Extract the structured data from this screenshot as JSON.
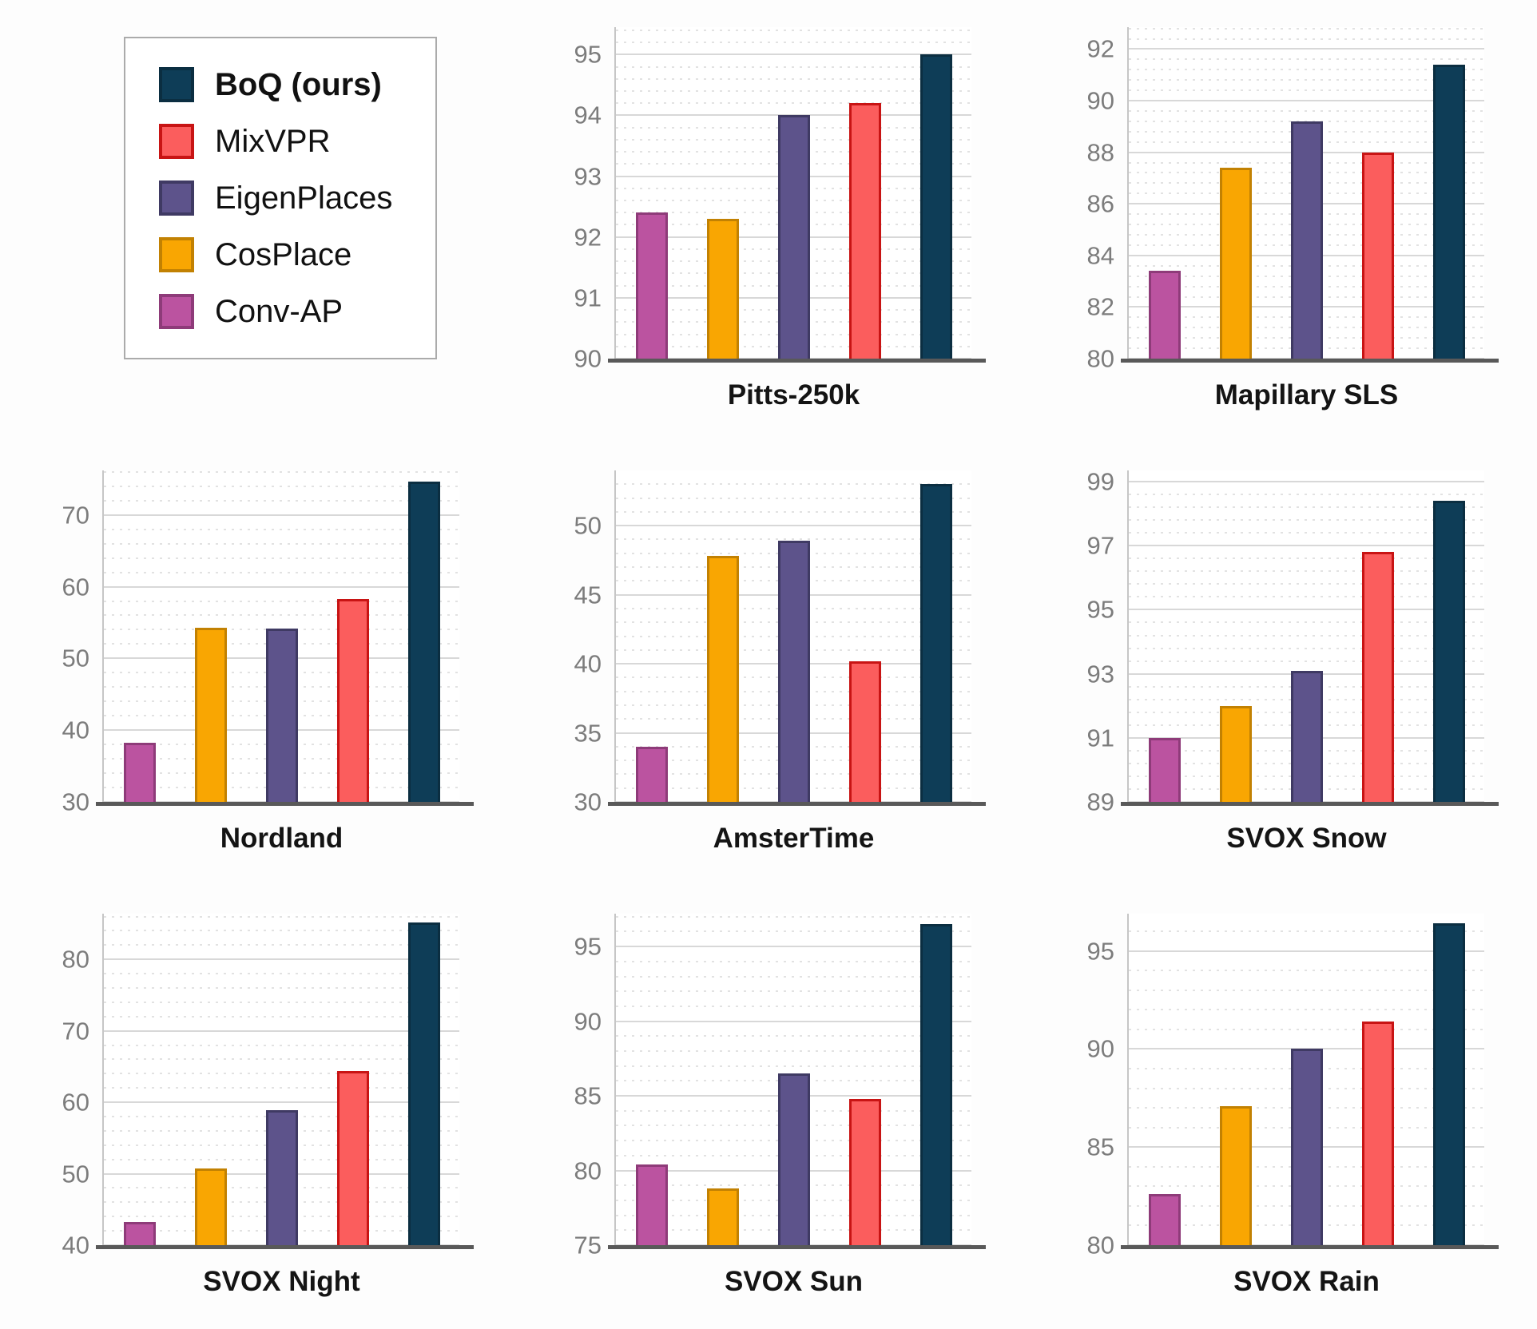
{
  "figure": {
    "description": "Grid of eight bar charts comparing place-recognition methods across benchmarks",
    "background": "#fdfdfd"
  },
  "legend": {
    "items": [
      {
        "label": "BoQ (ours)",
        "series": "BoQ (ours)",
        "bold": true
      },
      {
        "label": "MixVPR",
        "series": "MixVPR",
        "bold": false
      },
      {
        "label": "EigenPlaces",
        "series": "EigenPlaces",
        "bold": false
      },
      {
        "label": "CosPlace",
        "series": "CosPlace",
        "bold": false
      },
      {
        "label": "Conv-AP",
        "series": "Conv-AP",
        "bold": false
      }
    ]
  },
  "series_colors": {
    "Conv-AP": {
      "fill": "#bb53a0",
      "border": "#8e3b79"
    },
    "CosPlace": {
      "fill": "#f9a602",
      "border": "#c28102"
    },
    "EigenPlaces": {
      "fill": "#5d538b",
      "border": "#3f3a63"
    },
    "MixVPR": {
      "fill": "#fb5d5d",
      "border": "#c81414"
    },
    "BoQ (ours)": {
      "fill": "#0e3d57",
      "border": "#0b2e41"
    }
  },
  "bar_order": [
    "Conv-AP",
    "CosPlace",
    "EigenPlaces",
    "MixVPR",
    "BoQ (ours)"
  ],
  "chart_data": [
    {
      "type": "bar",
      "title": "Pitts-250k",
      "ylim": [
        90,
        95.45
      ],
      "yticks": [
        90,
        91,
        92,
        93,
        94,
        95
      ],
      "minor_step": 0.2,
      "grid": "major-solid minor-dotted",
      "legend_position": "separate-top-left",
      "categories": [
        "Conv-AP",
        "CosPlace",
        "EigenPlaces",
        "MixVPR",
        "BoQ (ours)"
      ],
      "values": [
        92.4,
        92.3,
        94.0,
        94.2,
        95.0
      ]
    },
    {
      "type": "bar",
      "title": "Mapillary SLS",
      "ylim": [
        80,
        92.85
      ],
      "yticks": [
        80,
        82,
        84,
        86,
        88,
        90,
        92
      ],
      "minor_step": 0.4,
      "grid": "major-solid minor-dotted",
      "legend_position": "separate-top-left",
      "categories": [
        "Conv-AP",
        "CosPlace",
        "EigenPlaces",
        "MixVPR",
        "BoQ (ours)"
      ],
      "values": [
        83.4,
        87.4,
        89.2,
        88.0,
        91.4
      ]
    },
    {
      "type": "bar",
      "title": "Nordland",
      "ylim": [
        30,
        76.2
      ],
      "yticks": [
        30,
        40,
        50,
        60,
        70
      ],
      "minor_step": 2,
      "grid": "major-solid minor-dotted",
      "legend_position": "separate-top-left",
      "categories": [
        "Conv-AP",
        "CosPlace",
        "EigenPlaces",
        "MixVPR",
        "BoQ (ours)"
      ],
      "values": [
        38.2,
        54.3,
        54.2,
        58.3,
        74.6
      ]
    },
    {
      "type": "bar",
      "title": "AmsterTime",
      "ylim": [
        30,
        54.0
      ],
      "yticks": [
        30,
        35,
        40,
        45,
        50
      ],
      "minor_step": 1,
      "grid": "major-solid minor-dotted",
      "legend_position": "separate-top-left",
      "categories": [
        "Conv-AP",
        "CosPlace",
        "EigenPlaces",
        "MixVPR",
        "BoQ (ours)"
      ],
      "values": [
        34.0,
        47.8,
        48.9,
        40.2,
        53.0
      ]
    },
    {
      "type": "bar",
      "title": "SVOX Snow",
      "ylim": [
        89,
        99.35
      ],
      "yticks": [
        89,
        91,
        93,
        95,
        97,
        99
      ],
      "minor_step": 0.4,
      "grid": "major-solid minor-dotted",
      "legend_position": "separate-top-left",
      "categories": [
        "Conv-AP",
        "CosPlace",
        "EigenPlaces",
        "MixVPR",
        "BoQ (ours)"
      ],
      "values": [
        91.0,
        92.0,
        93.1,
        96.8,
        98.4
      ]
    },
    {
      "type": "bar",
      "title": "SVOX Night",
      "ylim": [
        40,
        86.4
      ],
      "yticks": [
        40,
        50,
        60,
        70,
        80
      ],
      "minor_step": 2,
      "grid": "major-solid minor-dotted",
      "legend_position": "separate-top-left",
      "categories": [
        "Conv-AP",
        "CosPlace",
        "EigenPlaces",
        "MixVPR",
        "BoQ (ours)"
      ],
      "values": [
        43.3,
        50.7,
        58.9,
        64.4,
        85.2
      ]
    },
    {
      "type": "bar",
      "title": "SVOX Sun",
      "ylim": [
        75,
        97.2
      ],
      "yticks": [
        75,
        80,
        85,
        90,
        95
      ],
      "minor_step": 1,
      "grid": "major-solid minor-dotted",
      "legend_position": "separate-top-left",
      "categories": [
        "Conv-AP",
        "CosPlace",
        "EigenPlaces",
        "MixVPR",
        "BoQ (ours)"
      ],
      "values": [
        80.4,
        78.8,
        86.5,
        84.8,
        96.5
      ]
    },
    {
      "type": "bar",
      "title": "SVOX Rain",
      "ylim": [
        80,
        96.9
      ],
      "yticks": [
        80,
        85,
        90,
        95
      ],
      "minor_step": 1,
      "grid": "major-solid minor-dotted",
      "legend_position": "separate-top-left",
      "categories": [
        "Conv-AP",
        "CosPlace",
        "EigenPlaces",
        "MixVPR",
        "BoQ (ours)"
      ],
      "values": [
        82.6,
        87.1,
        90.0,
        91.4,
        96.4
      ]
    }
  ]
}
